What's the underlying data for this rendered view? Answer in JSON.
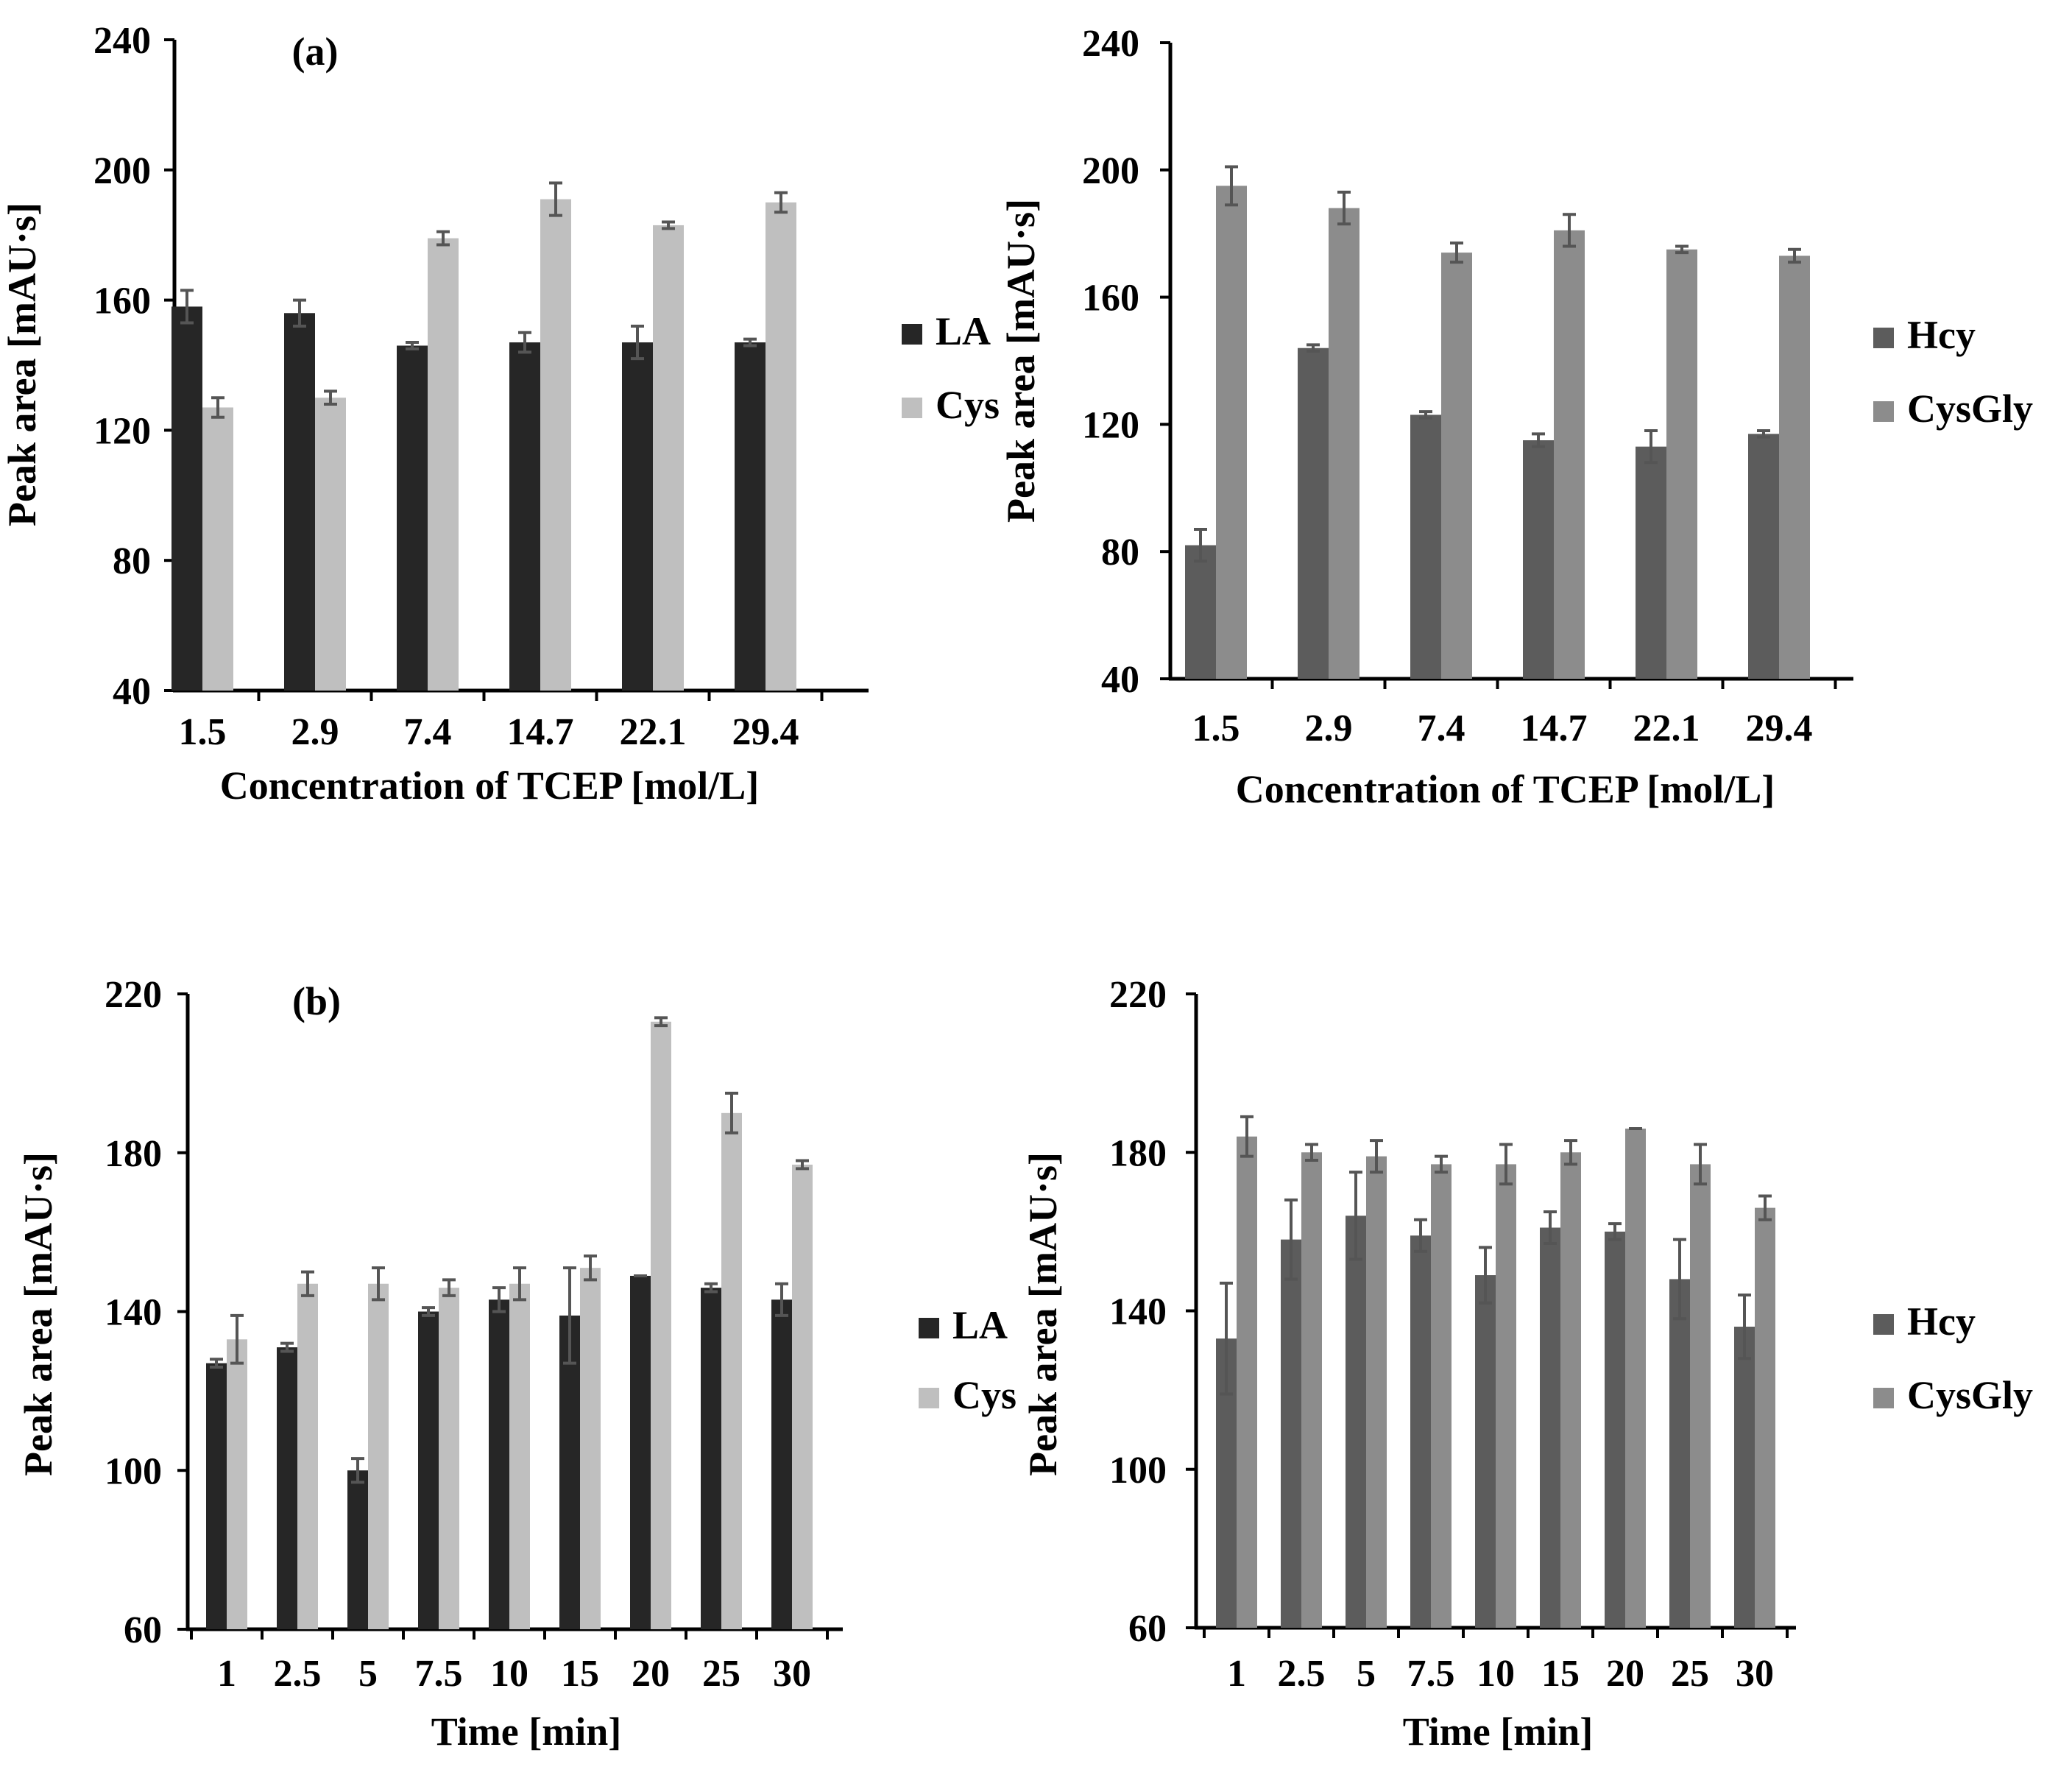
{
  "colors": {
    "LA": "#262626",
    "Cys": "#bfbfbf",
    "Hcy": "#5c5c5c",
    "CysGly": "#8c8c8c",
    "error_bar": "#555555"
  },
  "chart_data": [
    {
      "id": "a-left",
      "type": "bar",
      "panel_label": "(a)",
      "categories": [
        "1.5",
        "2.9",
        "7.4",
        "14.7",
        "22.1",
        "29.4"
      ],
      "xlabel": "Concentration of TCEP [mol/L]",
      "ylabel": "Peak area [mAU·s]",
      "ylim": [
        40,
        240
      ],
      "yticks": [
        "40",
        "80",
        "120",
        "160",
        "200",
        "240"
      ],
      "legend_position": "right",
      "grid": false,
      "series": [
        {
          "name": "LA",
          "color_key": "LA",
          "values": [
            158,
            156,
            146,
            147,
            147,
            147
          ],
          "errors": [
            5,
            4,
            1,
            3,
            5,
            1
          ]
        },
        {
          "name": "Cys",
          "color_key": "Cys",
          "values": [
            127,
            130,
            179,
            191,
            183,
            190
          ],
          "errors": [
            3,
            2,
            2,
            5,
            1,
            3
          ]
        }
      ]
    },
    {
      "id": "a-right",
      "type": "bar",
      "panel_label": "",
      "categories": [
        "1.5",
        "2.9",
        "7.4",
        "14.7",
        "22.1",
        "29.4"
      ],
      "xlabel": "Concentration of TCEP [mol/L]",
      "ylabel": "Peak area [mAU·s]",
      "ylim": [
        40,
        240
      ],
      "yticks": [
        "40",
        "80",
        "120",
        "160",
        "200",
        "240"
      ],
      "legend_position": "right",
      "grid": false,
      "series": [
        {
          "name": "Hcy",
          "color_key": "Hcy",
          "values": [
            82,
            144,
            123,
            115,
            113,
            117
          ],
          "errors": [
            5,
            1,
            1,
            2,
            5,
            1
          ]
        },
        {
          "name": "CysGly",
          "color_key": "CysGly",
          "values": [
            195,
            188,
            174,
            181,
            175,
            173
          ],
          "errors": [
            6,
            5,
            3,
            5,
            1,
            2
          ]
        }
      ]
    },
    {
      "id": "b-left",
      "type": "bar",
      "panel_label": "(b)",
      "categories": [
        "1",
        "2.5",
        "5",
        "7.5",
        "10",
        "15",
        "20",
        "25",
        "30"
      ],
      "xlabel": "Time [min]",
      "ylabel": "Peak area [mAU·s]",
      "ylim": [
        60,
        220
      ],
      "yticks": [
        "60",
        "100",
        "140",
        "180",
        "220"
      ],
      "legend_position": "right",
      "grid": false,
      "series": [
        {
          "name": "LA",
          "color_key": "LA",
          "values": [
            127,
            131,
            100,
            140,
            143,
            139,
            149,
            146,
            143
          ],
          "errors": [
            1,
            1,
            3,
            1,
            3,
            12,
            0,
            1,
            4
          ]
        },
        {
          "name": "Cys",
          "color_key": "Cys",
          "values": [
            133,
            147,
            147,
            146,
            147,
            151,
            213,
            190,
            177
          ],
          "errors": [
            6,
            3,
            4,
            2,
            4,
            3,
            1,
            5,
            1
          ]
        }
      ]
    },
    {
      "id": "b-right",
      "type": "bar",
      "panel_label": "",
      "categories": [
        "1",
        "2.5",
        "5",
        "7.5",
        "10",
        "15",
        "20",
        "25",
        "30"
      ],
      "xlabel": "Time [min]",
      "ylabel": "Peak area [mAU·s]",
      "ylim": [
        60,
        220
      ],
      "yticks": [
        "60",
        "100",
        "140",
        "180",
        "220"
      ],
      "legend_position": "right",
      "grid": false,
      "series": [
        {
          "name": "Hcy",
          "color_key": "Hcy",
          "values": [
            133,
            158,
            164,
            159,
            149,
            161,
            160,
            148,
            136
          ],
          "errors": [
            14,
            10,
            11,
            4,
            7,
            4,
            2,
            10,
            8
          ]
        },
        {
          "name": "CysGly",
          "color_key": "CysGly",
          "values": [
            184,
            180,
            179,
            177,
            177,
            180,
            186,
            177,
            166
          ],
          "errors": [
            5,
            2,
            4,
            2,
            5,
            3,
            0,
            5,
            3
          ]
        }
      ]
    }
  ]
}
